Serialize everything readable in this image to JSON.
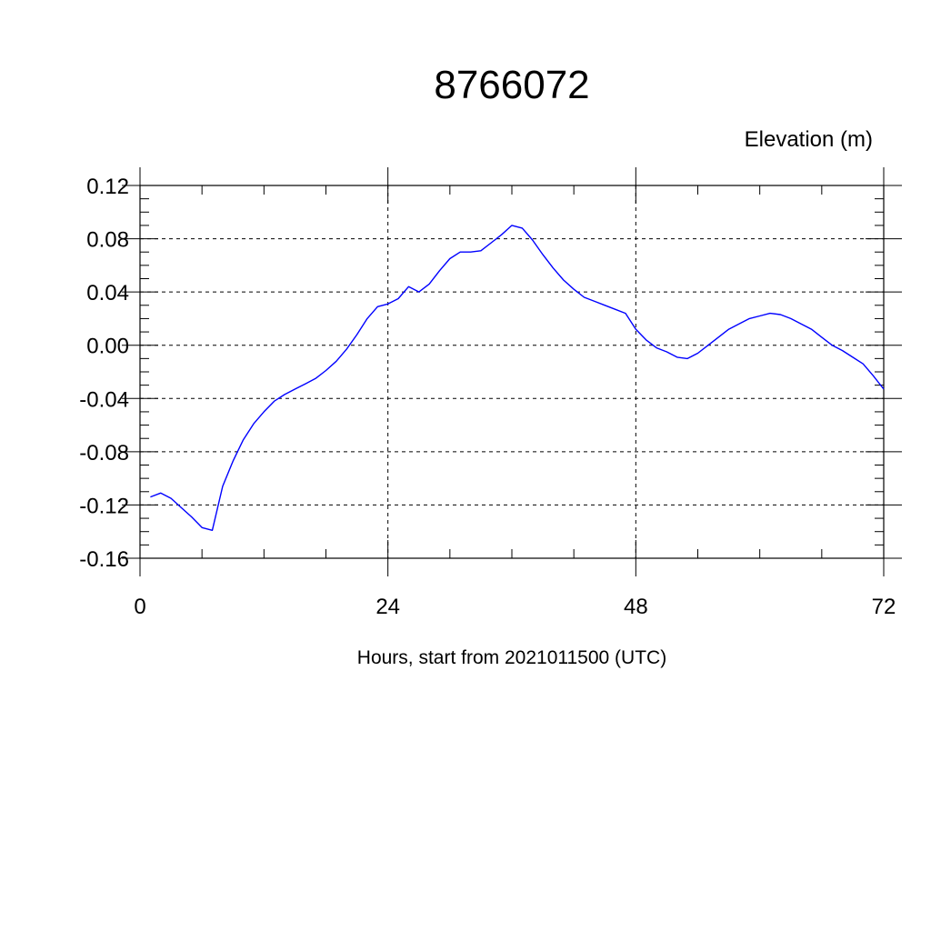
{
  "chart_data": {
    "type": "line",
    "title": "8766072",
    "ylabel": "Elevation (m)",
    "xlabel": "Hours, start from 2021011500 (UTC)",
    "xlim": [
      0,
      72
    ],
    "ylim": [
      -0.16,
      0.12
    ],
    "x_ticks": [
      0,
      24,
      48,
      72
    ],
    "x_tick_labels": [
      "0",
      "24",
      "48",
      "72"
    ],
    "x_minor_step": 6,
    "y_ticks": [
      -0.16,
      -0.12,
      -0.08,
      -0.04,
      0.0,
      0.04,
      0.08,
      0.12
    ],
    "y_tick_labels": [
      "-0.16",
      "-0.12",
      "-0.08",
      "-0.04",
      "0.00",
      "0.04",
      "0.08",
      "0.12"
    ],
    "y_minor_step": 0.01,
    "grid": true,
    "line_color": "#0000ff",
    "series": [
      {
        "x": [
          1,
          2,
          3,
          4,
          5,
          6,
          7,
          8,
          9,
          10,
          11,
          12,
          13,
          14,
          15,
          16,
          17,
          18,
          19,
          20,
          21,
          22,
          23,
          24,
          25,
          26,
          27,
          28,
          29,
          30,
          31,
          32,
          33,
          34,
          35,
          36,
          37,
          38,
          39,
          40,
          41,
          42,
          43,
          44,
          45,
          46,
          47,
          48,
          49,
          50,
          51,
          52,
          53,
          54,
          55,
          56,
          57,
          58,
          59,
          60,
          61,
          62,
          63,
          64,
          65,
          66,
          67,
          68,
          69,
          70,
          71,
          72
        ],
        "values": [
          -0.114,
          -0.111,
          -0.115,
          -0.122,
          -0.129,
          -0.137,
          -0.139,
          -0.106,
          -0.087,
          -0.071,
          -0.059,
          -0.05,
          -0.042,
          -0.037,
          -0.033,
          -0.029,
          -0.025,
          -0.019,
          -0.012,
          -0.003,
          0.008,
          0.02,
          0.029,
          0.031,
          0.035,
          0.044,
          0.04,
          0.046,
          0.056,
          0.065,
          0.07,
          0.07,
          0.071,
          0.077,
          0.083,
          0.09,
          0.088,
          0.079,
          0.068,
          0.058,
          0.049,
          0.042,
          0.036,
          0.033,
          0.03,
          0.027,
          0.024,
          0.012,
          0.004,
          -0.002,
          -0.005,
          -0.009,
          -0.01,
          -0.006,
          0.0,
          0.006,
          0.012,
          0.016,
          0.02,
          0.022,
          0.024,
          0.023,
          0.02,
          0.016,
          0.012,
          0.006,
          0.0,
          -0.004,
          -0.009,
          -0.014,
          -0.023,
          -0.033
        ]
      }
    ]
  }
}
